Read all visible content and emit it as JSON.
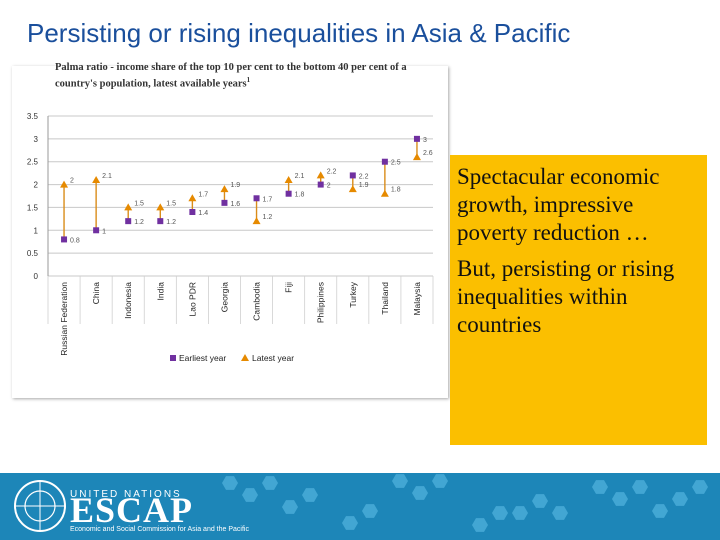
{
  "slide": {
    "title": "Persisting or rising inequalities in Asia & Pacific",
    "callout": [
      "Spectacular economic growth, impressive poverty reduction …",
      "But, persisting or rising inequalities within countries"
    ]
  },
  "banner": {
    "org_line": "UNITED NATIONS",
    "acronym": "ESCAP",
    "full_name": "Economic and Social Commission for Asia and the Pacific",
    "bg_color": "#1d86b8"
  },
  "chart_data": {
    "type": "scatter",
    "title": "Palma ratio - income share of the top 10 per cent to the bottom 40 per cent of a country's population, latest available years",
    "title_footnote": "1",
    "categories": [
      "Russian Federation",
      "China",
      "Indonesia",
      "India",
      "Lao PDR",
      "Georgia",
      "Cambodia",
      "Fiji",
      "Philippines",
      "Turkey",
      "Thailand",
      "Malaysia"
    ],
    "series": [
      {
        "name": "Earliest year",
        "values": [
          0.8,
          1,
          1.2,
          1.2,
          1.4,
          1.6,
          1.7,
          1.8,
          2,
          2.2,
          2.5,
          3
        ],
        "color": "#7030a0",
        "marker": "square"
      },
      {
        "name": "Latest year",
        "values": [
          2,
          2.1,
          1.5,
          1.5,
          1.7,
          1.9,
          1.2,
          2.1,
          2.2,
          1.9,
          1.8,
          2.6
        ],
        "color": "#e68a00",
        "marker": "triangle"
      }
    ],
    "point_labels_earliest": [
      "0.8",
      "1",
      "1.2",
      "1.2",
      "1.4",
      "1.6",
      "1.7",
      "1.8",
      "2",
      "2.2",
      "2.5",
      "3"
    ],
    "point_labels_latest": [
      "2",
      "2.1",
      "1.5",
      "1.5",
      "1.7",
      "1.9",
      "1.2",
      "2.1",
      "2.2",
      "1.9",
      "1.8",
      "2.6"
    ],
    "yticks": [
      "0",
      "0.5",
      "1",
      "1.5",
      "2",
      "2.5",
      "3",
      "3.5"
    ],
    "ylim": [
      0,
      3.5
    ],
    "grid": true,
    "connector_color": "#d98c1a",
    "legend_position": "bottom"
  }
}
